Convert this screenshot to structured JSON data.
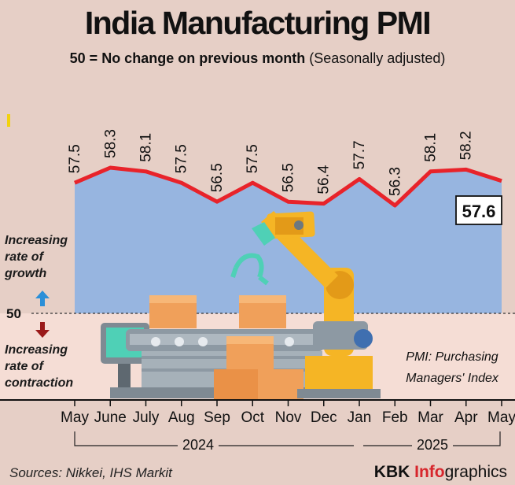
{
  "chart_data": {
    "type": "line",
    "title": "India Manufacturing PMI",
    "subtitle_bold": "50 = No change on previous month",
    "subtitle_plain": "(Seasonally adjusted)",
    "categories": [
      "May",
      "June",
      "July",
      "Aug",
      "Sep",
      "Oct",
      "Nov",
      "Dec",
      "Jan",
      "Feb",
      "Mar",
      "Apr",
      "May"
    ],
    "values": [
      57.5,
      58.3,
      58.1,
      57.5,
      56.5,
      57.5,
      56.5,
      56.4,
      57.7,
      56.3,
      58.1,
      58.2,
      57.6
    ],
    "value_labels": [
      "57.5",
      "58.3",
      "58.1",
      "57.5",
      "56.5",
      "57.5",
      "56.5",
      "56.4",
      "57.7",
      "56.3",
      "58.1",
      "58.2",
      "57.6"
    ],
    "years": [
      {
        "label": "2024"
      },
      {
        "label": "2025"
      }
    ],
    "reference_line": {
      "value": 50,
      "label": "50"
    },
    "growth_label": "Increasing rate of growth",
    "contraction_label": "Increasing rate of contraction",
    "colors": {
      "line": "#e8232a",
      "area": "#97b5e0",
      "below": "#f5ddd5",
      "background": "#e6cfc6"
    }
  },
  "annotations": {
    "growth_lines": [
      "Increasing",
      "rate of",
      "growth"
    ],
    "contraction_lines": [
      "Increasing",
      "rate of",
      "contraction"
    ],
    "pmi_note_lines": [
      "PMI: Purchasing",
      "Managers' Index"
    ]
  },
  "footer": {
    "source": "Sources: Nikkei, IHS Markit",
    "brand_kbk": "KBK",
    "brand_info": "Info",
    "brand_graphics": "graphics"
  }
}
